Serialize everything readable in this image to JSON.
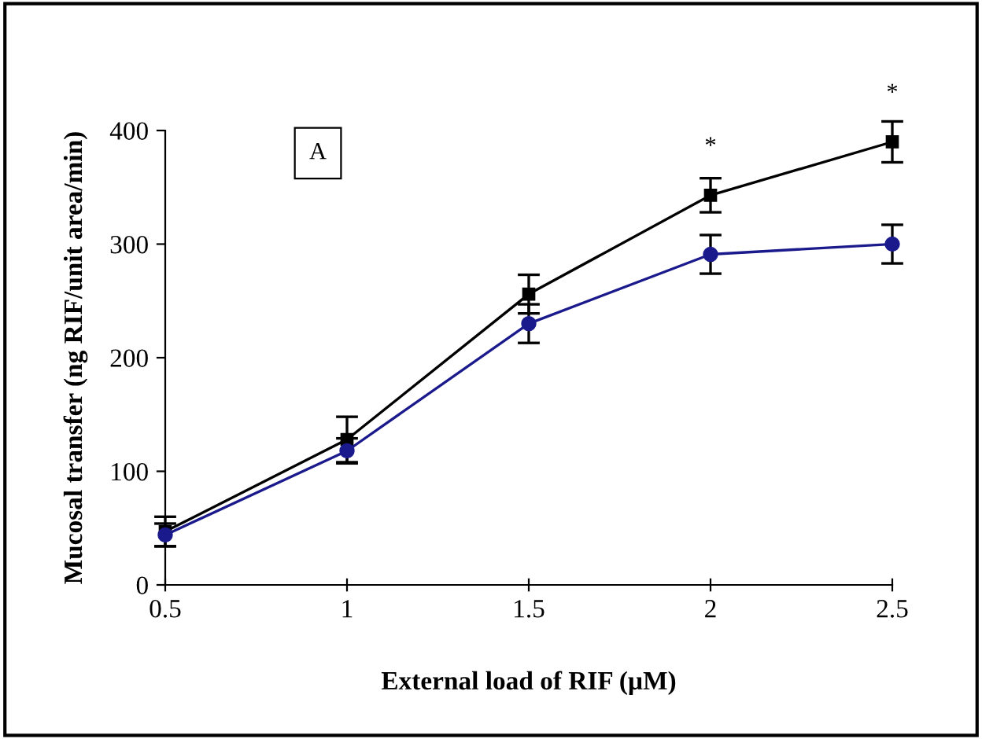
{
  "chart_data": {
    "type": "line",
    "xlabel": "External load of RIF (µM)",
    "ylabel": "Mucosal transfer (ng RIF/unit area/min)",
    "x": [
      0.5,
      1,
      1.5,
      2,
      2.5
    ],
    "xlim": [
      0.5,
      2.5
    ],
    "xticks": [
      0.5,
      1,
      1.5,
      2,
      2.5
    ],
    "ylim": [
      0,
      400
    ],
    "yticks": [
      0,
      100,
      200,
      300,
      400
    ],
    "grid": false,
    "legend": false,
    "series": [
      {
        "color": "#000000",
        "marker": "square",
        "values": [
          47,
          128,
          256,
          343,
          390
        ],
        "errors": [
          13,
          20,
          17,
          15,
          18
        ]
      },
      {
        "color": "#1a1a8c",
        "marker": "circle",
        "values": [
          44,
          118,
          230,
          291,
          300
        ],
        "errors": [
          10,
          11,
          17,
          17,
          17
        ]
      }
    ],
    "annotations": [
      "A",
      {
        "text": "*",
        "x": 2,
        "y": 343
      },
      {
        "text": "*",
        "x": 2.5,
        "y": 390
      }
    ]
  }
}
